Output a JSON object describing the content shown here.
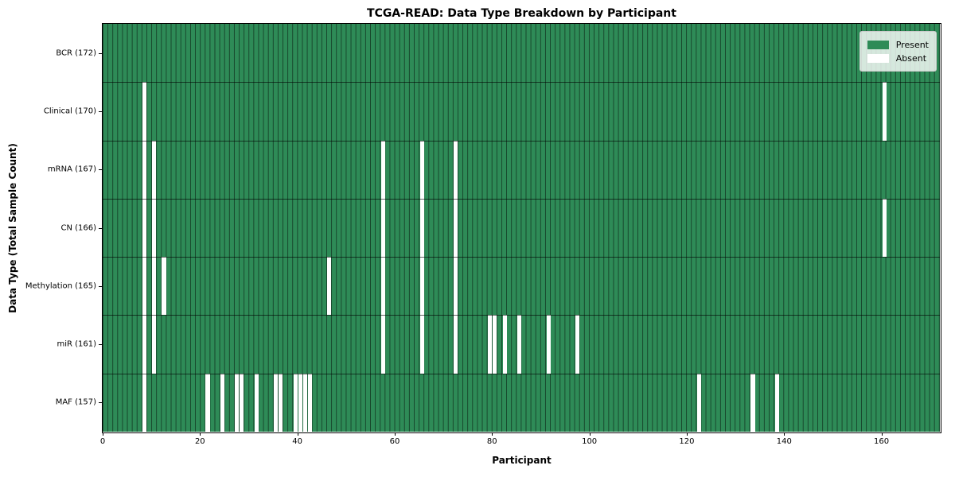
{
  "chart": {
    "title": "TCGA-READ: Data Type Breakdown by Participant",
    "xlabel": "Participant",
    "ylabel": "Data Type (Total Sample Count)"
  },
  "legend": {
    "present_label": "Present",
    "absent_label": "Absent"
  },
  "chart_data": {
    "type": "heatmap",
    "title": "TCGA-READ: Data Type Breakdown by Participant",
    "xlabel": "Participant",
    "ylabel": "Data Type (Total Sample Count)",
    "n_participants": 172,
    "x_ticks": [
      0,
      20,
      40,
      60,
      80,
      100,
      120,
      140,
      160
    ],
    "x_range": [
      0,
      172
    ],
    "grid": true,
    "legend_position": "upper right",
    "colors": {
      "present": "#2e8b57",
      "absent": "#ffffff"
    },
    "legend_entries": [
      {
        "label": "Present",
        "color": "#2e8b57"
      },
      {
        "label": "Absent",
        "color": "#ffffff"
      }
    ],
    "rows": [
      {
        "key": "bcr",
        "label": "BCR (172)",
        "data_type": "BCR",
        "total_sample_count": 172,
        "absent_participants": []
      },
      {
        "key": "clinical",
        "label": "Clinical (170)",
        "data_type": "Clinical",
        "total_sample_count": 170,
        "absent_participants": [
          8,
          160
        ]
      },
      {
        "key": "mrna",
        "label": "mRNA (167)",
        "data_type": "mRNA",
        "total_sample_count": 167,
        "absent_participants": [
          8,
          10,
          57,
          65,
          72
        ]
      },
      {
        "key": "cn",
        "label": "CN (166)",
        "data_type": "CN",
        "total_sample_count": 166,
        "absent_participants": [
          8,
          10,
          57,
          65,
          72,
          160
        ]
      },
      {
        "key": "methylation",
        "label": "Methylation (165)",
        "data_type": "Methylation",
        "total_sample_count": 165,
        "absent_participants": [
          8,
          10,
          12,
          46,
          57,
          65,
          72
        ]
      },
      {
        "key": "mir",
        "label": "miR (161)",
        "data_type": "miR",
        "total_sample_count": 161,
        "absent_participants": [
          8,
          10,
          57,
          65,
          72,
          79,
          80,
          82,
          85,
          91,
          97
        ]
      },
      {
        "key": "maf",
        "label": "MAF (157)",
        "data_type": "MAF",
        "total_sample_count": 157,
        "absent_participants": [
          8,
          21,
          24,
          27,
          28,
          31,
          35,
          36,
          39,
          40,
          41,
          42,
          122,
          133,
          138
        ]
      }
    ]
  }
}
